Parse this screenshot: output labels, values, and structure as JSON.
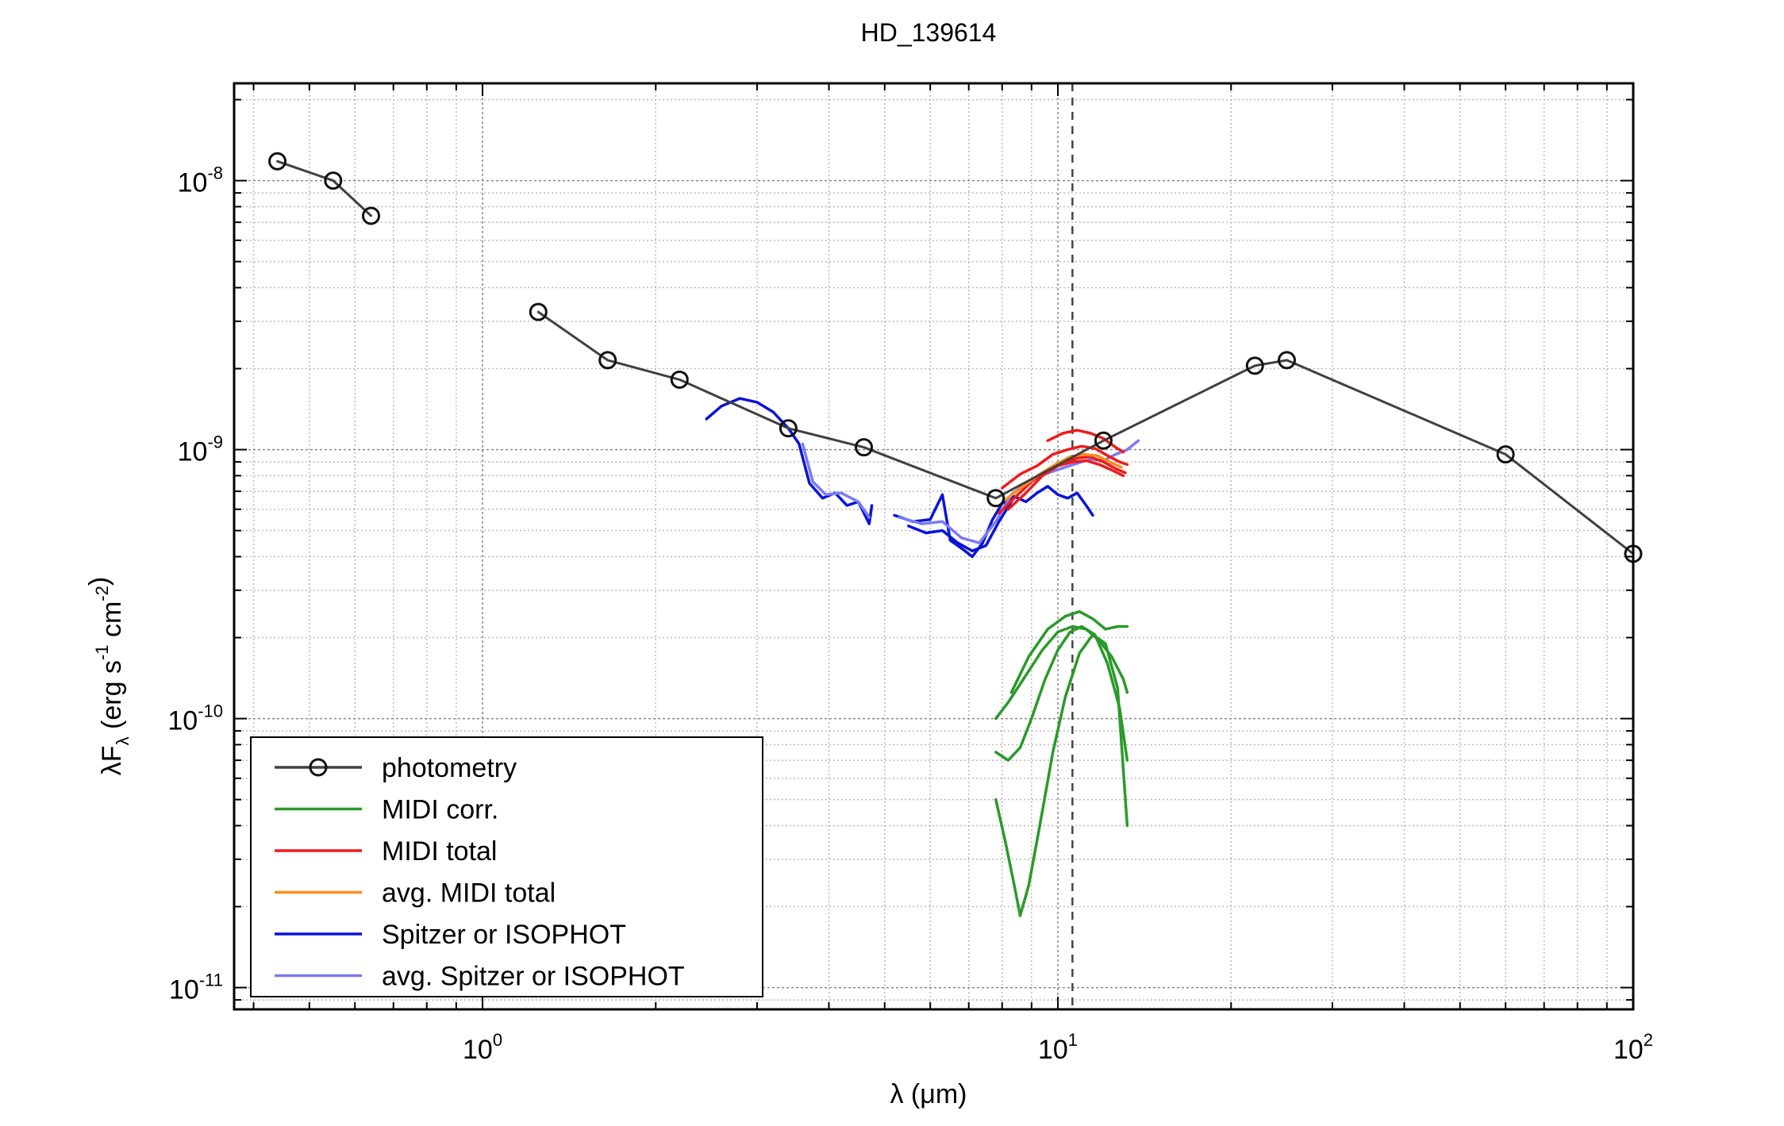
{
  "chart_data": {
    "type": "line",
    "title": "HD_139614",
    "xlabel": "λ (μm)",
    "ylabel": "λF_λ (erg s^-1 cm^-2)",
    "xscale": "log",
    "yscale": "log",
    "xlim": [
      0.37,
      100
    ],
    "ylim": [
      8.3e-12,
      2.3e-08
    ],
    "grid": true,
    "legend_position": "bottom-left",
    "x_ticks": [
      {
        "base": "10",
        "exp": "0",
        "value": 1
      },
      {
        "base": "10",
        "exp": "1",
        "value": 10
      },
      {
        "base": "10",
        "exp": "2",
        "value": 100
      }
    ],
    "y_ticks": [
      {
        "base": "10",
        "exp": "-11",
        "value": 1e-11
      },
      {
        "base": "10",
        "exp": "-10",
        "value": 1e-10
      },
      {
        "base": "10",
        "exp": "-9",
        "value": 1e-09
      },
      {
        "base": "10",
        "exp": "-8",
        "value": 1e-08
      }
    ],
    "vline_x": 10.6,
    "series": [
      {
        "name": "photometry",
        "color": "#404040",
        "marker": "circle",
        "segments": [
          [
            [
              0.44,
              1.18e-08
            ],
            [
              0.55,
              1e-08
            ],
            [
              0.64,
              7.4e-09
            ]
          ],
          [
            [
              1.25,
              3.25e-09
            ],
            [
              1.65,
              2.15e-09
            ],
            [
              2.2,
              1.82e-09
            ],
            [
              3.4,
              1.2e-09
            ],
            [
              4.6,
              1.02e-09
            ],
            [
              7.8,
              6.6e-10
            ],
            [
              12.0,
              1.08e-09
            ],
            [
              22.0,
              2.05e-09
            ],
            [
              25.0,
              2.15e-09
            ],
            [
              60.0,
              9.6e-10
            ],
            [
              100.0,
              4.1e-10
            ]
          ]
        ]
      },
      {
        "name": "MIDI corr.",
        "color": "#2a9a2a",
        "marker": "none",
        "segments": [
          [
            [
              7.8,
              1e-10
            ],
            [
              8.2,
              1.15e-10
            ],
            [
              8.8,
              1.45e-10
            ],
            [
              9.4,
              1.8e-10
            ],
            [
              10.0,
              2.1e-10
            ],
            [
              10.6,
              2.2e-10
            ],
            [
              11.2,
              2.15e-10
            ],
            [
              11.8,
              1.95e-10
            ],
            [
              12.4,
              1.7e-10
            ],
            [
              13.0,
              1.4e-10
            ],
            [
              13.2,
              1.25e-10
            ]
          ],
          [
            [
              7.8,
              7.5e-11
            ],
            [
              8.2,
              7e-11
            ],
            [
              8.6,
              7.8e-11
            ],
            [
              9.0,
              1e-10
            ],
            [
              9.5,
              1.4e-10
            ],
            [
              10.0,
              1.8e-10
            ],
            [
              10.5,
              2.1e-10
            ],
            [
              11.0,
              2.2e-10
            ],
            [
              11.6,
              2.05e-10
            ],
            [
              12.2,
              1.6e-10
            ],
            [
              12.8,
              1.1e-10
            ],
            [
              13.2,
              7e-11
            ]
          ],
          [
            [
              7.8,
              5e-11
            ],
            [
              8.1,
              3.5e-11
            ],
            [
              8.4,
              2.4e-11
            ],
            [
              8.6,
              1.85e-11
            ],
            [
              8.9,
              2.4e-11
            ],
            [
              9.3,
              4e-11
            ],
            [
              9.8,
              7.5e-11
            ],
            [
              10.3,
              1.2e-10
            ],
            [
              10.9,
              1.75e-10
            ],
            [
              11.5,
              2.05e-10
            ],
            [
              12.1,
              1.9e-10
            ],
            [
              12.7,
              1.3e-10
            ],
            [
              13.2,
              4e-11
            ]
          ],
          [
            [
              8.3,
              1.25e-10
            ],
            [
              8.9,
              1.7e-10
            ],
            [
              9.6,
              2.15e-10
            ],
            [
              10.3,
              2.4e-10
            ],
            [
              10.9,
              2.5e-10
            ],
            [
              11.5,
              2.35e-10
            ],
            [
              12.1,
              2.15e-10
            ],
            [
              12.7,
              2.2e-10
            ],
            [
              13.2,
              2.2e-10
            ]
          ]
        ]
      },
      {
        "name": "MIDI total",
        "color": "#ee1c1c",
        "marker": "none",
        "segments": [
          [
            [
              7.9,
              5.8e-10
            ],
            [
              8.4,
              6.6e-10
            ],
            [
              9.0,
              7.6e-10
            ],
            [
              9.6,
              8.4e-10
            ],
            [
              10.2,
              8.9e-10
            ],
            [
              10.8,
              9.3e-10
            ],
            [
              11.4,
              9.4e-10
            ],
            [
              12.0,
              9e-10
            ],
            [
              12.6,
              8.5e-10
            ],
            [
              13.1,
              8.2e-10
            ]
          ],
          [
            [
              8.0,
              7.2e-10
            ],
            [
              8.6,
              8.1e-10
            ],
            [
              9.2,
              8.7e-10
            ],
            [
              9.8,
              9.6e-10
            ],
            [
              10.4,
              1e-09
            ],
            [
              11.0,
              1.03e-09
            ],
            [
              11.6,
              1.01e-09
            ],
            [
              12.2,
              9.5e-10
            ],
            [
              12.8,
              9e-10
            ],
            [
              13.2,
              8.8e-10
            ]
          ],
          [
            [
              9.6,
              1.08e-09
            ],
            [
              10.2,
              1.15e-09
            ],
            [
              10.8,
              1.18e-09
            ],
            [
              11.4,
              1.15e-09
            ],
            [
              12.0,
              1.1e-09
            ],
            [
              12.6,
              1.02e-09
            ],
            [
              13.0,
              9.8e-10
            ]
          ],
          [
            [
              8.2,
              6e-10
            ],
            [
              8.8,
              6.9e-10
            ],
            [
              9.4,
              8e-10
            ],
            [
              10.0,
              8.7e-10
            ],
            [
              10.6,
              9e-10
            ],
            [
              11.2,
              9.1e-10
            ],
            [
              11.8,
              8.8e-10
            ],
            [
              12.4,
              8.4e-10
            ],
            [
              13.0,
              8e-10
            ]
          ]
        ]
      },
      {
        "name": "avg. MIDI total",
        "color": "#ff8c1a",
        "marker": "none",
        "segments": [
          [
            [
              8.1,
              6.5e-10
            ],
            [
              8.7,
              7.3e-10
            ],
            [
              9.3,
              8.1e-10
            ],
            [
              9.9,
              8.8e-10
            ],
            [
              10.5,
              9.4e-10
            ],
            [
              11.1,
              9.6e-10
            ],
            [
              11.7,
              9.5e-10
            ],
            [
              12.3,
              9e-10
            ],
            [
              12.9,
              8.6e-10
            ]
          ]
        ]
      },
      {
        "name": "Spitzer or ISOPHOT",
        "color": "#0a14d8",
        "marker": "none",
        "segments": [
          [
            [
              2.45,
              1.3e-09
            ],
            [
              2.6,
              1.45e-09
            ],
            [
              2.8,
              1.55e-09
            ],
            [
              3.0,
              1.5e-09
            ],
            [
              3.2,
              1.38e-09
            ],
            [
              3.4,
              1.2e-09
            ],
            [
              3.55,
              1.05e-09
            ],
            [
              3.7,
              7.5e-10
            ],
            [
              3.9,
              6.6e-10
            ],
            [
              4.1,
              6.9e-10
            ],
            [
              4.3,
              6.2e-10
            ],
            [
              4.5,
              6.4e-10
            ],
            [
              4.7,
              5.3e-10
            ],
            [
              4.75,
              6.2e-10
            ]
          ],
          [
            [
              5.2,
              5.7e-10
            ],
            [
              5.6,
              5.4e-10
            ],
            [
              6.0,
              5.5e-10
            ],
            [
              6.3,
              6.8e-10
            ],
            [
              6.5,
              4.6e-10
            ],
            [
              6.8,
              4.3e-10
            ],
            [
              7.1,
              4e-10
            ],
            [
              7.4,
              4.5e-10
            ],
            [
              7.7,
              5.5e-10
            ],
            [
              8.0,
              6.3e-10
            ],
            [
              8.4,
              6.7e-10
            ],
            [
              8.8,
              6.4e-10
            ],
            [
              9.2,
              6.9e-10
            ],
            [
              9.6,
              7.3e-10
            ],
            [
              10.0,
              6.8e-10
            ],
            [
              10.4,
              6.6e-10
            ],
            [
              10.8,
              6.9e-10
            ],
            [
              11.2,
              6.2e-10
            ],
            [
              11.5,
              5.7e-10
            ]
          ],
          [
            [
              5.5,
              5.2e-10
            ],
            [
              5.9,
              4.9e-10
            ],
            [
              6.3,
              5e-10
            ],
            [
              6.7,
              4.5e-10
            ],
            [
              7.1,
              4.2e-10
            ],
            [
              7.5,
              4.4e-10
            ],
            [
              7.9,
              5.4e-10
            ],
            [
              8.3,
              6.4e-10
            ]
          ]
        ]
      },
      {
        "name": "avg. Spitzer or ISOPHOT",
        "color": "#7b7bf2",
        "marker": "none",
        "segments": [
          [
            [
              3.6,
              1.05e-09
            ],
            [
              3.75,
              7.6e-10
            ],
            [
              3.95,
              6.8e-10
            ],
            [
              4.2,
              6.9e-10
            ],
            [
              4.5,
              6.4e-10
            ],
            [
              4.7,
              5.6e-10
            ]
          ],
          [
            [
              5.3,
              5.6e-10
            ],
            [
              5.8,
              5.3e-10
            ],
            [
              6.3,
              5.4e-10
            ],
            [
              6.8,
              4.7e-10
            ],
            [
              7.3,
              4.5e-10
            ],
            [
              7.8,
              5.4e-10
            ],
            [
              8.3,
              6.8e-10
            ],
            [
              8.8,
              7.5e-10
            ],
            [
              9.3,
              8e-10
            ],
            [
              9.8,
              8.3e-10
            ],
            [
              10.3,
              8.6e-10
            ],
            [
              10.8,
              8.9e-10
            ],
            [
              11.4,
              9.2e-10
            ],
            [
              12.0,
              9.1e-10
            ],
            [
              12.6,
              9.6e-10
            ],
            [
              13.2,
              1e-09
            ],
            [
              13.8,
              1.08e-09
            ]
          ]
        ]
      }
    ]
  }
}
